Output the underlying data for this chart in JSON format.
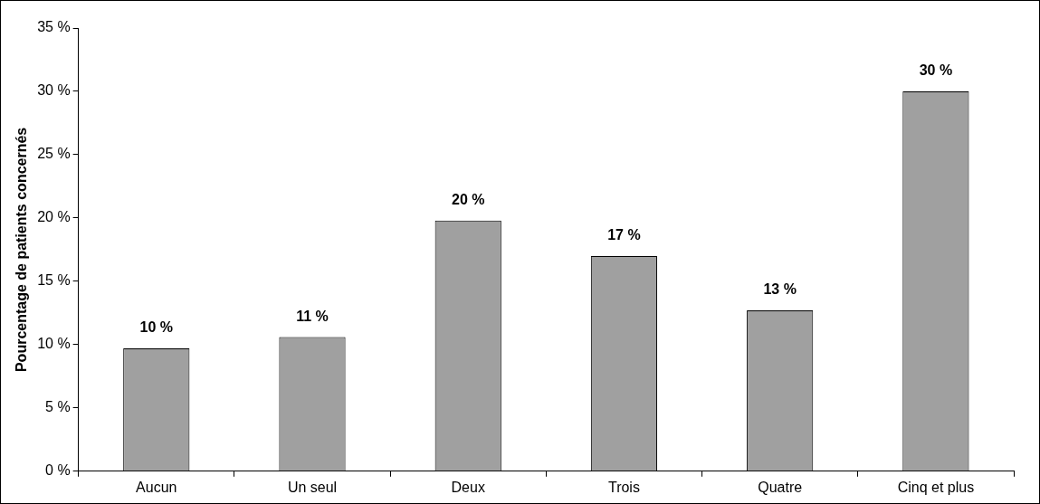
{
  "chart_data": {
    "type": "bar",
    "ylabel": "Pourcentage de patients concernés",
    "categories": [
      "Aucun",
      "Un seul",
      "Deux",
      "Trois",
      "Quatre",
      "Cinq et plus"
    ],
    "values": [
      9.7,
      10.6,
      19.8,
      17.0,
      12.7,
      30.0
    ],
    "value_labels": [
      "10 %",
      "11 %",
      "20 %",
      "17 %",
      "13 %",
      "30 %"
    ],
    "color": "#a0a0a0",
    "ylim": [
      0,
      35
    ],
    "yticks": [
      {
        "value": 0,
        "label": "0 %"
      },
      {
        "value": 5,
        "label": "5 %"
      },
      {
        "value": 10,
        "label": "10 %"
      },
      {
        "value": 15,
        "label": "15 %"
      },
      {
        "value": 20,
        "label": "20 %"
      },
      {
        "value": 25,
        "label": "25 %"
      },
      {
        "value": 30,
        "label": "30 %"
      },
      {
        "value": 35,
        "label": "35 %"
      }
    ],
    "grid": false,
    "legend": false
  }
}
